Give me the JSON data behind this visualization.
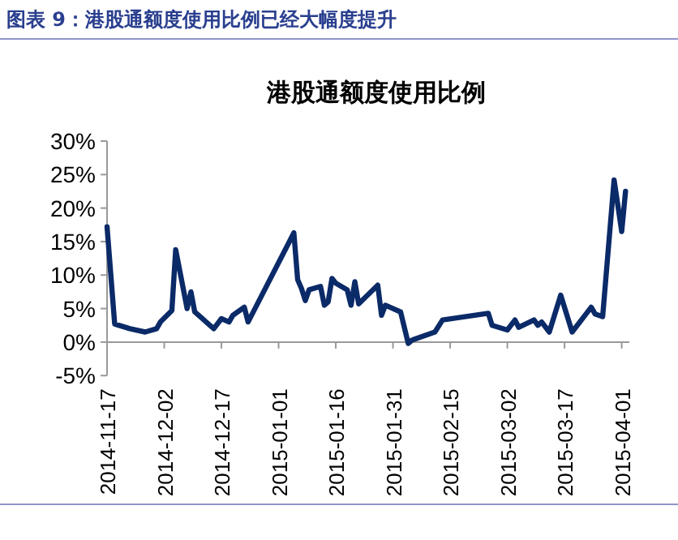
{
  "chart_data": {
    "type": "line",
    "title": "港股通额度使用比例",
    "annotations": [
      "图表 9：港股通额度使用比例已经大幅度提升"
    ],
    "x": [
      "2014-11-17",
      "2014-11-19",
      "2014-11-23",
      "2014-11-27",
      "2014-11-30",
      "2014-12-01",
      "2014-12-04",
      "2014-12-05",
      "2014-12-08",
      "2014-12-09",
      "2014-12-10",
      "2014-12-12",
      "2014-12-15",
      "2014-12-17",
      "2014-12-19",
      "2014-12-20",
      "2014-12-23",
      "2014-12-24",
      "2015-01-05",
      "2015-01-06",
      "2015-01-07",
      "2015-01-08",
      "2015-01-09",
      "2015-01-12",
      "2015-01-13",
      "2015-01-14",
      "2015-01-15",
      "2015-01-16",
      "2015-01-19",
      "2015-01-20",
      "2015-01-21",
      "2015-01-22",
      "2015-01-27",
      "2015-01-28",
      "2015-01-29",
      "2015-02-02",
      "2015-02-04",
      "2015-02-05",
      "2015-02-11",
      "2015-02-13",
      "2015-02-25",
      "2015-02-26",
      "2015-03-02",
      "2015-03-04",
      "2015-03-05",
      "2015-03-09",
      "2015-03-10",
      "2015-03-11",
      "2015-03-13",
      "2015-03-16",
      "2015-03-19",
      "2015-03-24",
      "2015-03-25",
      "2015-03-27",
      "2015-03-30",
      "2015-04-01",
      "2015-04-02"
    ],
    "series": [
      {
        "color": "#0b2a68",
        "values": [
          17.2,
          2.7,
          2.0,
          1.5,
          2.0,
          3.0,
          4.7,
          13.8,
          5.0,
          7.5,
          4.5,
          3.5,
          2.0,
          3.5,
          3.0,
          4.0,
          5.2,
          3.0,
          16.3,
          9.3,
          8.0,
          6.2,
          7.8,
          8.3,
          5.5,
          6.0,
          9.5,
          8.8,
          7.8,
          5.5,
          9.0,
          5.7,
          8.5,
          4.0,
          5.5,
          4.5,
          -0.2,
          0.3,
          1.5,
          3.3,
          4.3,
          2.5,
          1.8,
          3.3,
          2.2,
          3.3,
          2.5,
          3.0,
          1.5,
          7.0,
          1.5,
          5.2,
          4.2,
          3.8,
          24.2,
          16.5,
          22.5
        ]
      }
    ],
    "xlim": [
      "2014-11-17",
      "2015-04-03"
    ],
    "xticks": [
      "2014-11-17",
      "2014-12-02",
      "2014-12-17",
      "2015-01-01",
      "2015-01-16",
      "2015-01-31",
      "2015-02-15",
      "2015-03-02",
      "2015-03-17",
      "2015-04-01"
    ],
    "ylim": [
      -5,
      30
    ],
    "yticks": [
      {
        "value": -5,
        "label": "-5%"
      },
      {
        "value": 0,
        "label": "0%"
      },
      {
        "value": 5,
        "label": "5%"
      },
      {
        "value": 10,
        "label": "10%"
      },
      {
        "value": 15,
        "label": "15%"
      },
      {
        "value": 20,
        "label": "20%"
      },
      {
        "value": 25,
        "label": "25%"
      },
      {
        "value": 30,
        "label": "30%"
      }
    ],
    "grid": false,
    "marker": "none",
    "line_style": "solid"
  }
}
